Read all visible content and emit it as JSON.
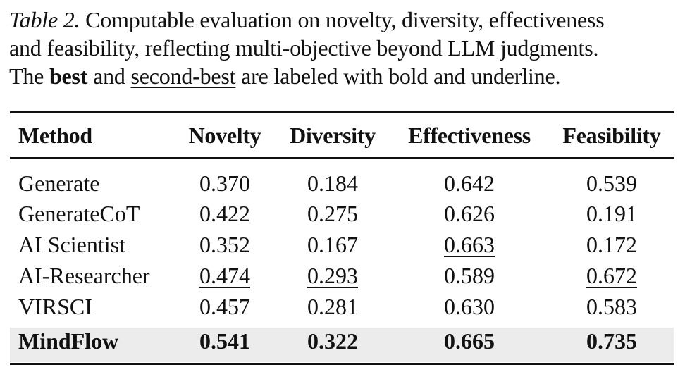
{
  "caption": {
    "label": "Table 2.",
    "line1_rest": " Computable evaluation on novelty, diversity, effectiveness",
    "line2": "and feasibility, reflecting multi-objective beyond LLM judgments.",
    "line3_pre": "The ",
    "best_word": "best",
    "line3_mid": " and ",
    "second_word": "second-best",
    "line3_post": " are labeled with bold and underline."
  },
  "table": {
    "headers": [
      "Method",
      "Novelty",
      "Diversity",
      "Effectiveness",
      "Feasibility"
    ],
    "rows": [
      {
        "method": "Generate",
        "values": [
          "0.370",
          "0.184",
          "0.642",
          "0.539"
        ]
      },
      {
        "method": "GenerateCoT",
        "values": [
          "0.422",
          "0.275",
          "0.626",
          "0.191"
        ]
      },
      {
        "method": "AI Scientist",
        "values": [
          "0.352",
          "0.167",
          "0.663",
          "0.172"
        ]
      },
      {
        "method": "AI-Researcher",
        "values": [
          "0.474",
          "0.293",
          "0.589",
          "0.672"
        ]
      },
      {
        "method": "VIRSCI",
        "values": [
          "0.457",
          "0.281",
          "0.630",
          "0.583"
        ]
      },
      {
        "method": "MindFlow",
        "values": [
          "0.541",
          "0.322",
          "0.665",
          "0.735"
        ]
      }
    ],
    "best_row_highlight": "#ececec"
  }
}
